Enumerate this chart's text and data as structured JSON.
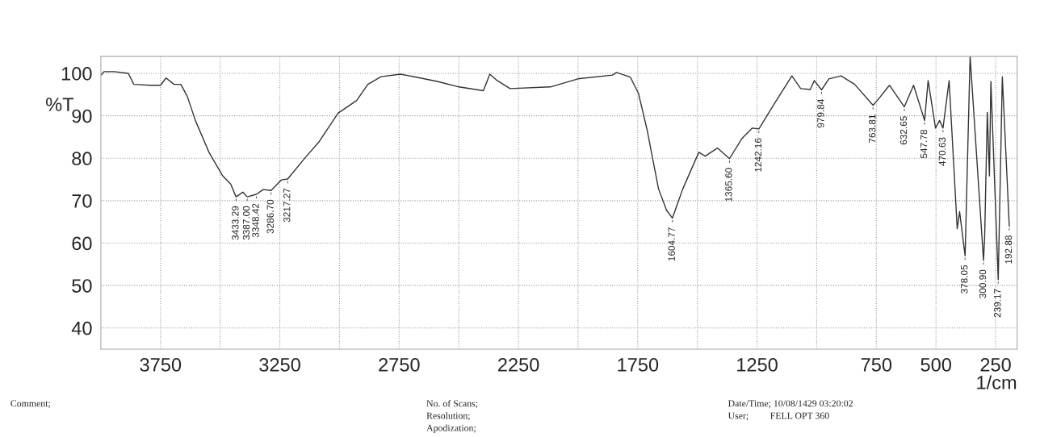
{
  "chart_data": {
    "type": "line",
    "xlabel": "1/cm",
    "ylabel": "%T",
    "x": [
      4000,
      3987,
      3943,
      3885,
      3862,
      3794,
      3750,
      3727,
      3693,
      3665,
      3638,
      3604,
      3547,
      3489,
      3456,
      3433.29,
      3405,
      3387,
      3348.42,
      3320,
      3286.7,
      3243,
      3217.27,
      3141,
      3084,
      3006,
      2928,
      2881,
      2826,
      2745,
      2678,
      2590,
      2499,
      2397,
      2370,
      2339,
      2285,
      2116,
      2001,
      1856,
      1839,
      1781,
      1747,
      1710,
      1663,
      1629,
      1604.77,
      1561,
      1494,
      1467,
      1416,
      1365.6,
      1314,
      1270,
      1242.16,
      1179,
      1104,
      1067,
      1027,
      1010,
      979.84,
      949,
      898,
      841,
      763.81,
      746,
      695,
      632.65,
      594,
      547.78,
      533,
      502,
      485,
      470.63,
      445,
      411,
      401,
      378.05,
      357,
      300.9,
      296,
      285,
      276,
      270,
      239.17,
      222,
      192.88
    ],
    "series": [
      {
        "color": "#333333",
        "values": [
          99.5,
          100.4,
          100.4,
          100,
          97.4,
          97.2,
          97.2,
          98.9,
          97.4,
          97.4,
          94.6,
          88.9,
          81.4,
          75.8,
          73.9,
          70.9,
          72,
          70.9,
          71.5,
          72.6,
          72.4,
          74.9,
          75.1,
          80.3,
          84,
          90.6,
          93.6,
          97.4,
          99.2,
          99.8,
          99.1,
          98.1,
          96.8,
          95.9,
          99.8,
          98.3,
          96.4,
          96.8,
          98.7,
          99.6,
          100.2,
          99.1,
          95.3,
          86.5,
          72.8,
          67.7,
          65.9,
          72.8,
          81.4,
          80.5,
          82.4,
          79.9,
          84.6,
          87.1,
          86.9,
          92.7,
          99.4,
          96.4,
          96.2,
          98.3,
          96.1,
          98.7,
          99.4,
          97.4,
          92.5,
          93.6,
          97.2,
          92.1,
          97.2,
          88.9,
          98.3,
          87.1,
          88.9,
          87.1,
          98.3,
          63.4,
          67.4,
          57,
          104,
          55.9,
          61.5,
          90.8,
          75.8,
          98.1,
          51.4,
          99.2,
          64
        ]
      }
    ],
    "xlim": [
      4000,
      160
    ],
    "ylim": [
      35,
      104
    ],
    "xticks": [
      3750,
      {
        "value": 3500,
        "label": null
      },
      3250,
      {
        "value": 3000,
        "label": null
      },
      2750,
      {
        "value": 2500,
        "label": null
      },
      2250,
      {
        "value": 2000,
        "label": null
      },
      1750,
      {
        "value": 1500,
        "label": null
      },
      1250,
      {
        "value": 1000,
        "label": null
      },
      750,
      500,
      250
    ],
    "yticks": [
      40,
      50,
      60,
      70,
      80,
      90,
      100
    ],
    "grid": true,
    "annotations": [
      {
        "text": "3433.29",
        "x": 3433.29,
        "y": 70.9
      },
      {
        "text": "3387.00",
        "x": 3387,
        "y": 70.9
      },
      {
        "text": "3348.42",
        "x": 3348.42,
        "y": 71.5
      },
      {
        "text": "3286.70",
        "x": 3286.7,
        "y": 72.4
      },
      {
        "text": "3217.27",
        "x": 3217.27,
        "y": 75.1
      },
      {
        "text": "1604.77",
        "x": 1604.77,
        "y": 65.9
      },
      {
        "text": "1365.60",
        "x": 1365.6,
        "y": 79.9
      },
      {
        "text": "1242.16",
        "x": 1242.16,
        "y": 86.9
      },
      {
        "text": "979.84",
        "x": 979.84,
        "y": 96.1
      },
      {
        "text": "763.81",
        "x": 763.81,
        "y": 92.5
      },
      {
        "text": "632.65",
        "x": 632.65,
        "y": 92.1
      },
      {
        "text": "547.78",
        "x": 547.78,
        "y": 88.9
      },
      {
        "text": "470.63",
        "x": 470.63,
        "y": 87.1
      },
      {
        "text": "378.05",
        "x": 378.05,
        "y": 57
      },
      {
        "text": "300.90",
        "x": 300.9,
        "y": 55.9
      },
      {
        "text": "239.17",
        "x": 239.17,
        "y": 51.4
      },
      {
        "text": "192.88",
        "x": 192.88,
        "y": 64
      },
      "Comment;",
      "No. of Scans;",
      "Resolution;",
      "Apodization;",
      "Date/Time; 10/08/1429 03:20:02",
      "User;         FELL OPT 360"
    ]
  }
}
